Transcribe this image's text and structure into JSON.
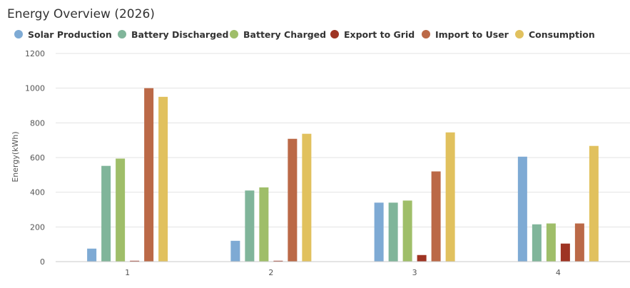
{
  "chart_data": {
    "type": "bar",
    "title": "Energy Overview (2026)",
    "ylabel": "Energy(kWh)",
    "xlabel": "",
    "categories": [
      "1",
      "2",
      "3",
      "4"
    ],
    "ylim": [
      0,
      1200
    ],
    "yticks": [
      0,
      200,
      400,
      600,
      800,
      1000,
      1200
    ],
    "grid": true,
    "legend_position": "top-left",
    "series": [
      {
        "name": "Solar Production",
        "color": "#7eaad4",
        "values": [
          75,
          120,
          340,
          605
        ]
      },
      {
        "name": "Battery Discharged",
        "color": "#80b59a",
        "values": [
          552,
          410,
          340,
          215
        ]
      },
      {
        "name": "Battery Charged",
        "color": "#9fbe69",
        "values": [
          594,
          428,
          352,
          220
        ]
      },
      {
        "name": "Export to Grid",
        "color": "#9e3423",
        "values": [
          5,
          5,
          38,
          104
        ]
      },
      {
        "name": "Import to User",
        "color": "#bb6947",
        "values": [
          1000,
          708,
          520,
          220
        ]
      },
      {
        "name": "Consumption",
        "color": "#e1c15e",
        "values": [
          950,
          737,
          745,
          667
        ]
      }
    ]
  }
}
